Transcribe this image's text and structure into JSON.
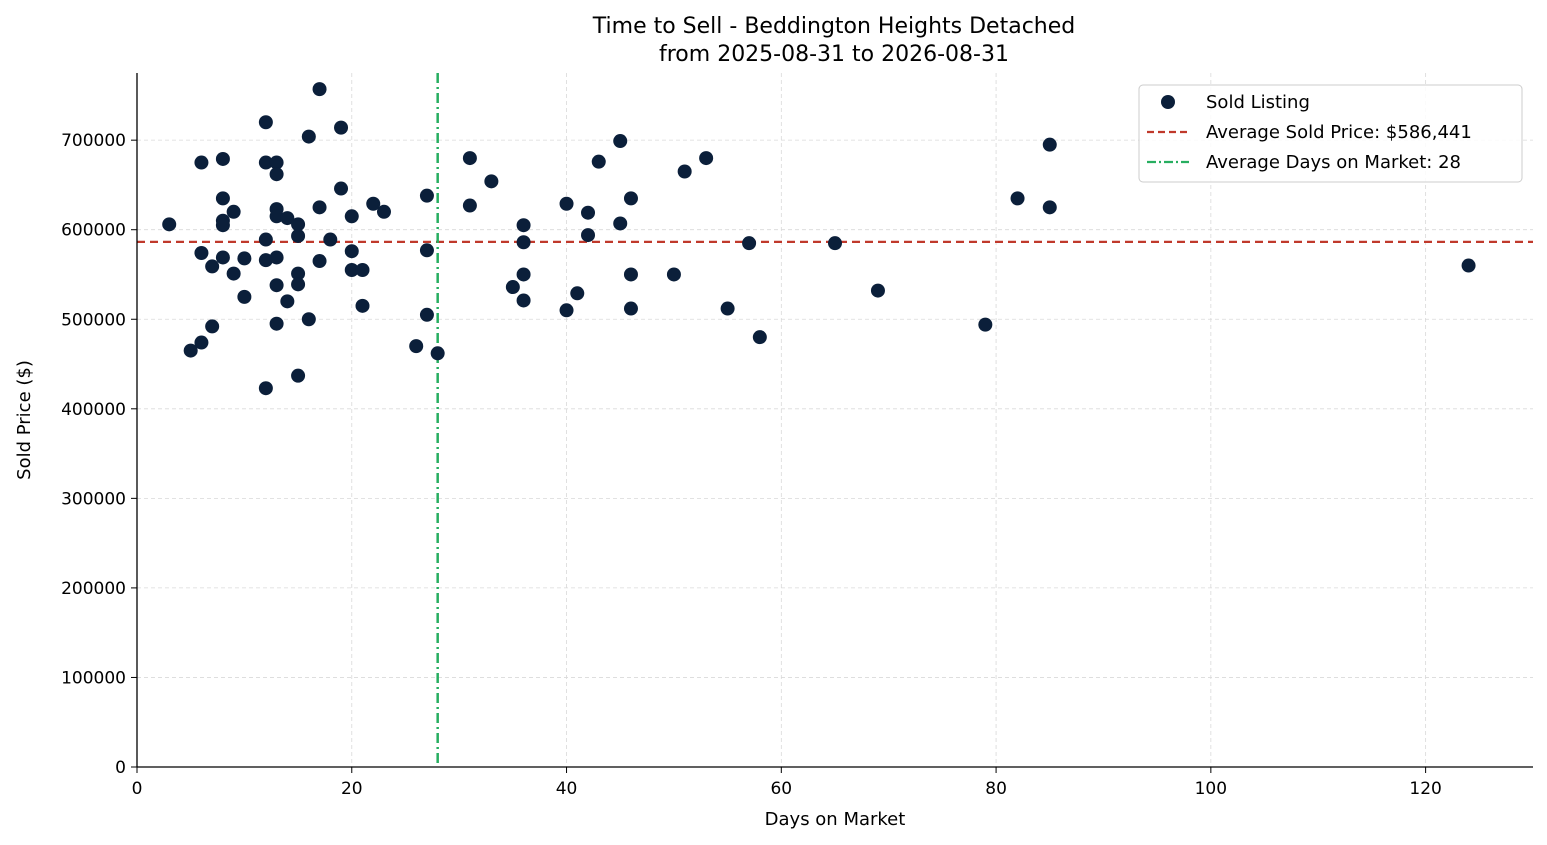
{
  "chart_data": {
    "type": "scatter",
    "title": "Time to Sell - Beddington Heights Detached",
    "subtitle": "from 2025-08-31 to 2026-08-31",
    "xlabel": "Days on Market",
    "ylabel": "Sold Price ($)",
    "xlim": [
      0,
      130
    ],
    "ylim": [
      0,
      775000
    ],
    "x_ticks": [
      "0",
      "20",
      "40",
      "60",
      "80",
      "100",
      "120"
    ],
    "y_ticks": [
      "0",
      "100000",
      "200000",
      "300000",
      "400000",
      "500000",
      "600000",
      "700000"
    ],
    "grid": true,
    "legend_position": "top-right",
    "colors": {
      "points": "#0b1f3a",
      "avg_price": "#c0392b",
      "avg_days": "#27ae60",
      "grid": "#d9d9d9"
    },
    "series": [
      {
        "name": "Sold Listing",
        "points": [
          [
            3,
            606000
          ],
          [
            5,
            465000
          ],
          [
            6,
            675000
          ],
          [
            6,
            574000
          ],
          [
            6,
            474000
          ],
          [
            7,
            559000
          ],
          [
            7,
            492000
          ],
          [
            8,
            679000
          ],
          [
            8,
            635000
          ],
          [
            8,
            610000
          ],
          [
            8,
            605000
          ],
          [
            8,
            569000
          ],
          [
            9,
            620000
          ],
          [
            9,
            551000
          ],
          [
            10,
            568000
          ],
          [
            10,
            525000
          ],
          [
            12,
            720000
          ],
          [
            12,
            675000
          ],
          [
            12,
            589000
          ],
          [
            12,
            566000
          ],
          [
            12,
            423000
          ],
          [
            13,
            675000
          ],
          [
            13,
            662000
          ],
          [
            13,
            623000
          ],
          [
            13,
            615000
          ],
          [
            13,
            569000
          ],
          [
            13,
            538000
          ],
          [
            13,
            495000
          ],
          [
            14,
            613000
          ],
          [
            14,
            520000
          ],
          [
            15,
            606000
          ],
          [
            15,
            593000
          ],
          [
            15,
            551000
          ],
          [
            15,
            539000
          ],
          [
            15,
            437000
          ],
          [
            16,
            704000
          ],
          [
            16,
            500000
          ],
          [
            17,
            757000
          ],
          [
            17,
            625000
          ],
          [
            17,
            565000
          ],
          [
            18,
            589000
          ],
          [
            19,
            714000
          ],
          [
            19,
            646000
          ],
          [
            20,
            615000
          ],
          [
            20,
            576000
          ],
          [
            20,
            555000
          ],
          [
            21,
            555000
          ],
          [
            21,
            515000
          ],
          [
            22,
            629000
          ],
          [
            23,
            620000
          ],
          [
            26,
            470000
          ],
          [
            27,
            638000
          ],
          [
            27,
            577000
          ],
          [
            27,
            505000
          ],
          [
            28,
            462000
          ],
          [
            31,
            680000
          ],
          [
            31,
            627000
          ],
          [
            33,
            654000
          ],
          [
            35,
            536000
          ],
          [
            36,
            605000
          ],
          [
            36,
            586000
          ],
          [
            36,
            550000
          ],
          [
            36,
            521000
          ],
          [
            40,
            629000
          ],
          [
            40,
            510000
          ],
          [
            41,
            529000
          ],
          [
            42,
            619000
          ],
          [
            42,
            594000
          ],
          [
            43,
            676000
          ],
          [
            45,
            699000
          ],
          [
            45,
            607000
          ],
          [
            46,
            635000
          ],
          [
            46,
            550000
          ],
          [
            46,
            512000
          ],
          [
            50,
            550000
          ],
          [
            51,
            665000
          ],
          [
            53,
            680000
          ],
          [
            55,
            512000
          ],
          [
            57,
            585000
          ],
          [
            58,
            480000
          ],
          [
            65,
            585000
          ],
          [
            69,
            532000
          ],
          [
            79,
            494000
          ],
          [
            82,
            635000
          ],
          [
            85,
            695000
          ],
          [
            85,
            625000
          ],
          [
            124,
            560000
          ]
        ]
      }
    ],
    "reference_lines": {
      "avg_price": {
        "label": "Average Sold Price: $586,441",
        "value": 586441
      },
      "avg_days": {
        "label": "Average Days on Market: 28",
        "value": 28
      }
    }
  }
}
